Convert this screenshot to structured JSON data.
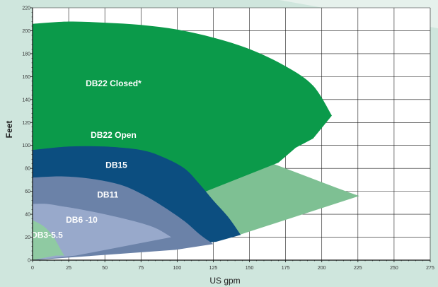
{
  "chart_data": {
    "type": "area",
    "title": "",
    "xlabel": "US gpm",
    "ylabel": "Feet",
    "xlim": [
      0,
      275
    ],
    "ylim": [
      0,
      220
    ],
    "grid": true,
    "x_ticks": [
      0,
      25,
      50,
      75,
      100,
      125,
      150,
      175,
      200,
      225,
      250,
      275
    ],
    "y_ticks": [
      0,
      20,
      40,
      60,
      80,
      100,
      120,
      140,
      160,
      180,
      200,
      220
    ],
    "colors": {
      "background": "#cfe6dd",
      "plot_background": "#ffffff",
      "grid": "#1a1a1a"
    },
    "series": [
      {
        "name": "DB22 Open",
        "color": "#7ec093",
        "label_at": [
          56,
          109
        ],
        "upper": [
          [
            0,
            148
          ],
          [
            25,
            146
          ],
          [
            50,
            140
          ],
          [
            75,
            131
          ],
          [
            100,
            119
          ],
          [
            125,
            106
          ],
          [
            150,
            92
          ],
          [
            175,
            80
          ],
          [
            200,
            68
          ],
          [
            225,
            56
          ]
        ],
        "lower": [
          [
            0,
            0
          ],
          [
            143,
            22
          ],
          [
            226,
            56
          ]
        ]
      },
      {
        "name": "DB22 Closed*",
        "color": "#0b9a4a",
        "label_at": [
          56,
          154
        ],
        "upper": [
          [
            0,
            206
          ],
          [
            25,
            208
          ],
          [
            50,
            207
          ],
          [
            75,
            205
          ],
          [
            100,
            201
          ],
          [
            125,
            194
          ],
          [
            150,
            184
          ],
          [
            175,
            169
          ],
          [
            194,
            152
          ],
          [
            207,
            126
          ]
        ],
        "lower": [
          [
            0,
            0
          ],
          [
            170,
            85
          ],
          [
            182,
            98
          ],
          [
            194,
            106
          ],
          [
            207,
            126
          ]
        ]
      },
      {
        "name": "DB15",
        "color": "#0c4e80",
        "label_at": [
          58,
          83
        ],
        "upper": [
          [
            0,
            96
          ],
          [
            25,
            99
          ],
          [
            50,
            99
          ],
          [
            75,
            96
          ],
          [
            90,
            90
          ],
          [
            105,
            80
          ],
          [
            115,
            67
          ],
          [
            125,
            52
          ],
          [
            135,
            38
          ],
          [
            144,
            22
          ]
        ],
        "lower": [
          [
            0,
            0
          ],
          [
            127,
            16
          ],
          [
            144,
            22
          ]
        ]
      },
      {
        "name": "DB11",
        "color": "#6b82a8",
        "label_at": [
          52,
          57
        ],
        "upper": [
          [
            0,
            72
          ],
          [
            20,
            73
          ],
          [
            40,
            71
          ],
          [
            60,
            66
          ],
          [
            75,
            58
          ],
          [
            90,
            47
          ],
          [
            105,
            34
          ],
          [
            116,
            22
          ],
          [
            125,
            14
          ]
        ],
        "lower": [
          [
            0,
            0
          ],
          [
            99,
            9
          ],
          [
            125,
            14
          ]
        ]
      },
      {
        "name": "DB6 -10",
        "color": "#98a9cb",
        "label_at": [
          34,
          35
        ],
        "upper": [
          [
            0,
            49
          ],
          [
            10,
            49
          ],
          [
            20,
            47
          ],
          [
            30,
            45
          ],
          [
            50,
            40
          ],
          [
            70,
            34
          ],
          [
            85,
            28
          ],
          [
            96,
            20
          ]
        ],
        "lower": [
          [
            0,
            0
          ],
          [
            30,
            4
          ],
          [
            96,
            20
          ]
        ]
      },
      {
        "name": "DB3-5.5",
        "color": "#8fcaa2",
        "label_at": [
          10,
          22
        ],
        "upper": [
          [
            0,
            35
          ],
          [
            6,
            31
          ],
          [
            10,
            27
          ],
          [
            14,
            21
          ],
          [
            17,
            15
          ],
          [
            20,
            8
          ],
          [
            22,
            4
          ]
        ],
        "lower": [
          [
            0,
            0
          ],
          [
            16,
            4
          ],
          [
            22,
            4
          ]
        ]
      }
    ]
  }
}
